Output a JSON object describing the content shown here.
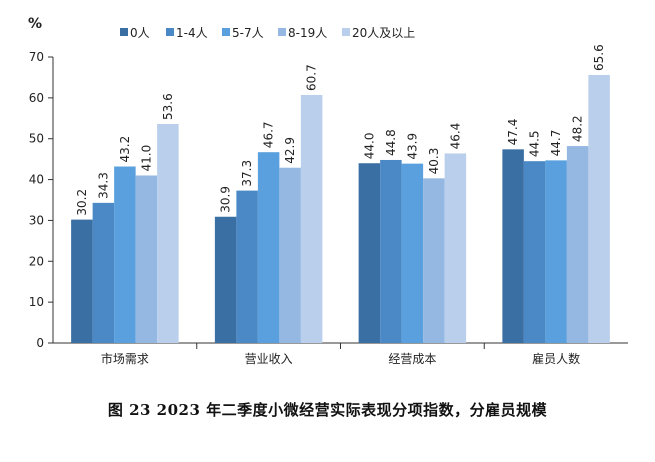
{
  "caption": "图 23 2023 年二季度小微经营实际表现分项指数，分雇员规模",
  "chart_data": {
    "type": "bar",
    "title": "",
    "xlabel": "",
    "ylabel": "%",
    "ylim": [
      0,
      70
    ],
    "yticks": [
      0,
      10,
      20,
      30,
      40,
      50,
      60,
      70
    ],
    "grid": false,
    "legend_position": "top",
    "categories": [
      "市场需求",
      "营业收入",
      "经营成本",
      "雇员人数"
    ],
    "series": [
      {
        "name": "0人",
        "color": "#3a6fa3",
        "values": [
          30.2,
          30.9,
          44.0,
          47.4
        ]
      },
      {
        "name": "1-4人",
        "color": "#4a89c6",
        "values": [
          34.3,
          37.3,
          44.8,
          44.5
        ]
      },
      {
        "name": "5-7人",
        "color": "#5aa0de",
        "values": [
          43.2,
          46.7,
          43.9,
          44.7
        ]
      },
      {
        "name": "8-19人",
        "color": "#94b8e2",
        "values": [
          41.0,
          42.9,
          40.3,
          48.2
        ]
      },
      {
        "name": "20人及以上",
        "color": "#b9cfec",
        "values": [
          53.6,
          60.7,
          46.4,
          65.6
        ]
      }
    ],
    "data_labels": [
      [
        "30.2",
        "34.3",
        "43.2",
        "41.0",
        "53.6"
      ],
      [
        "30.9",
        "37.3",
        "46.7",
        "42.9",
        "60.7"
      ],
      [
        "44.0",
        "44.8",
        "43.9",
        "40.3",
        "46.4"
      ],
      [
        "47.4",
        "44.5",
        "44.7",
        "48.2",
        "65.6"
      ]
    ]
  }
}
